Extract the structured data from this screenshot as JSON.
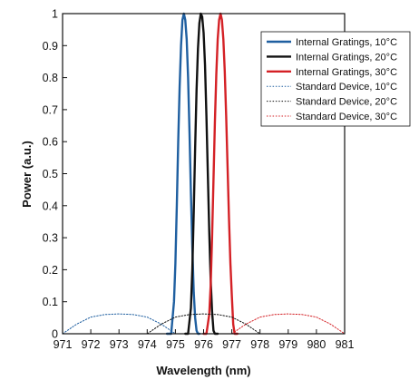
{
  "chart_data": {
    "type": "line",
    "title": "",
    "xlabel": "Wavelength (nm)",
    "ylabel": "Power (a.u.)",
    "xlim": [
      971,
      981
    ],
    "ylim": [
      0,
      1
    ],
    "x_ticks": [
      "971",
      "972",
      "973",
      "974",
      "975",
      "976",
      "977",
      "978",
      "979",
      "980",
      "981"
    ],
    "y_ticks": [
      "0",
      "0.1",
      "0.2",
      "0.3",
      "0.4",
      "0.5",
      "0.6",
      "0.7",
      "0.8",
      "0.9",
      "1"
    ],
    "grid": false,
    "legend_position": "top-right",
    "series": [
      {
        "name": "Internal Gratings, 10°C",
        "color": "#1f5fa0",
        "style": "solid",
        "x": [
          974.7,
          974.85,
          974.95,
          975.0,
          975.05,
          975.1,
          975.15,
          975.2,
          975.25,
          975.3,
          975.35,
          975.4,
          975.45,
          975.5,
          975.55,
          975.6,
          975.65,
          975.7,
          975.75,
          975.8,
          975.85
        ],
        "y": [
          0,
          0.0,
          0.1,
          0.22,
          0.4,
          0.6,
          0.77,
          0.9,
          0.98,
          1.0,
          0.98,
          0.92,
          0.8,
          0.63,
          0.44,
          0.27,
          0.13,
          0.05,
          0.01,
          0,
          0
        ]
      },
      {
        "name": "Internal Gratings, 20°C",
        "color": "#111111",
        "style": "solid",
        "x": [
          975.35,
          975.45,
          975.55,
          975.6,
          975.65,
          975.7,
          975.75,
          975.8,
          975.85,
          975.9,
          975.95,
          976.0,
          976.05,
          976.1,
          976.15,
          976.2,
          976.25,
          976.3,
          976.35,
          976.4,
          976.5
        ],
        "y": [
          0,
          0.0,
          0.08,
          0.2,
          0.38,
          0.58,
          0.76,
          0.89,
          0.97,
          1.0,
          0.99,
          0.94,
          0.84,
          0.68,
          0.5,
          0.32,
          0.17,
          0.07,
          0.01,
          0,
          0
        ]
      },
      {
        "name": "Internal Gratings, 30°C",
        "color": "#d42126",
        "style": "solid",
        "x": [
          976.0,
          976.1,
          976.2,
          976.25,
          976.3,
          976.35,
          976.4,
          976.45,
          976.5,
          976.55,
          976.6,
          976.65,
          976.7,
          976.75,
          976.8,
          976.85,
          976.9,
          976.95,
          977.0,
          977.05,
          977.1,
          977.2
        ],
        "y": [
          0,
          0.0,
          0.06,
          0.15,
          0.3,
          0.48,
          0.66,
          0.81,
          0.92,
          0.98,
          1.0,
          0.98,
          0.92,
          0.82,
          0.68,
          0.52,
          0.36,
          0.22,
          0.12,
          0.03,
          0,
          0
        ]
      },
      {
        "name": "Standard Device, 10°C",
        "color": "#1f5fa0",
        "style": "dotted",
        "x": [
          971.0,
          971.5,
          972.0,
          972.5,
          973.0,
          973.5,
          974.0,
          974.5,
          975.0
        ],
        "y": [
          0.0,
          0.03,
          0.052,
          0.06,
          0.062,
          0.06,
          0.052,
          0.03,
          0.0
        ]
      },
      {
        "name": "Standard Device, 20°C",
        "color": "#111111",
        "style": "dotted",
        "x": [
          974.0,
          974.5,
          975.0,
          975.5,
          976.0,
          976.5,
          977.0,
          977.5,
          978.0
        ],
        "y": [
          0.0,
          0.03,
          0.052,
          0.06,
          0.062,
          0.06,
          0.052,
          0.03,
          0.0
        ]
      },
      {
        "name": "Standard Device, 30°C",
        "color": "#d42126",
        "style": "dotted",
        "x": [
          977.0,
          977.5,
          978.0,
          978.5,
          979.0,
          979.5,
          980.0,
          980.5,
          981.0
        ],
        "y": [
          0.0,
          0.03,
          0.052,
          0.06,
          0.062,
          0.06,
          0.052,
          0.03,
          0.0
        ]
      }
    ]
  }
}
